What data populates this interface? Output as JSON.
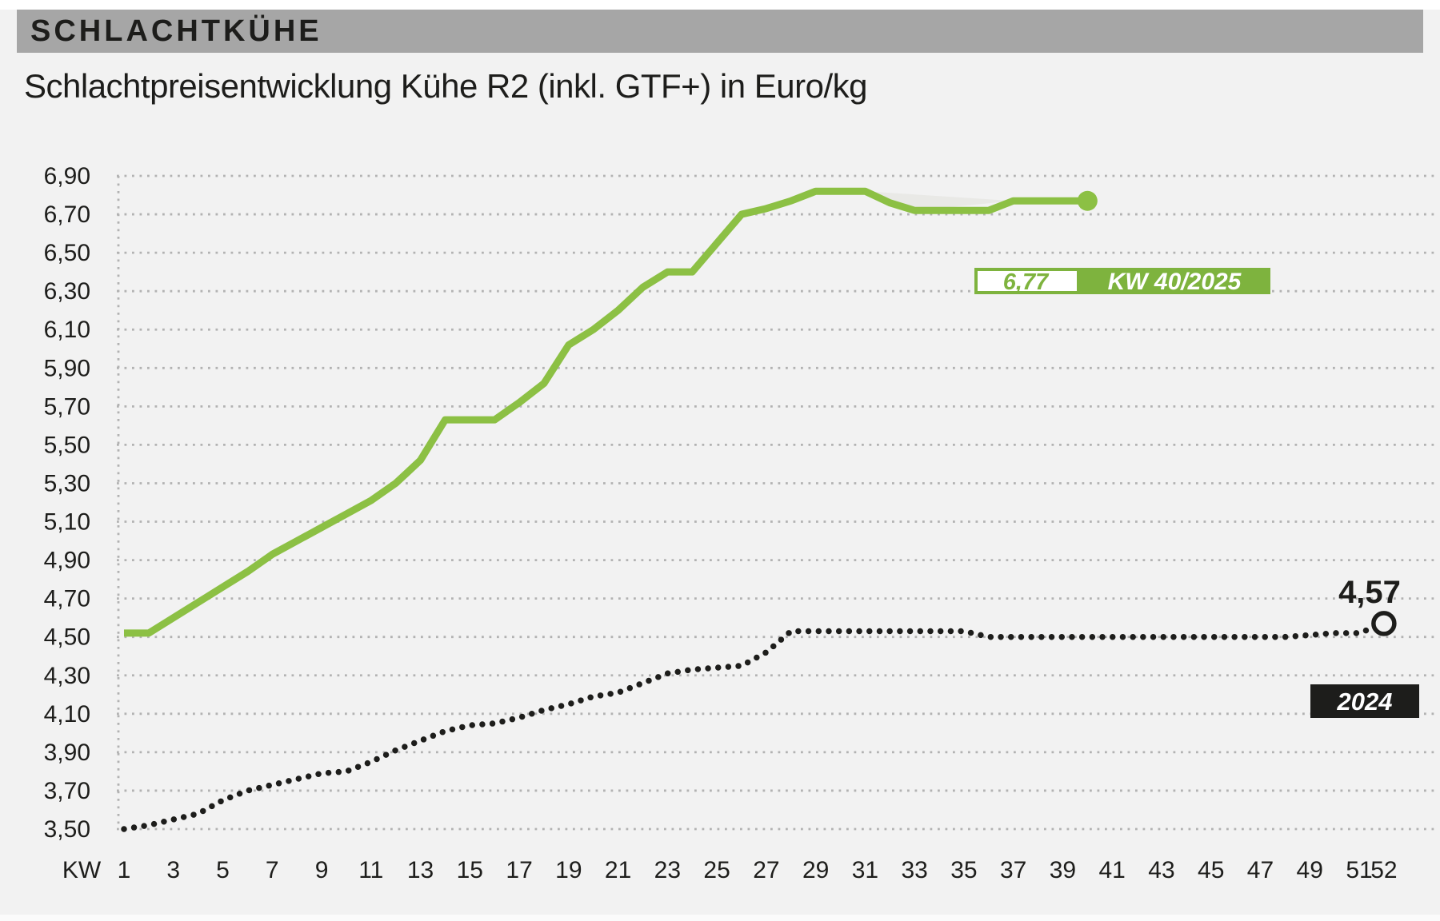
{
  "header": {
    "category_label": "SCHLACHTKÜHE",
    "title": "Schlachtpreisentwicklung Kühe R2 (inkl. GTF+) in Euro/kg"
  },
  "chart_data": {
    "type": "line",
    "title": "Schlachtpreisentwicklung Kühe R2 (inkl. GTF+) in Euro/kg",
    "unit": "Euro/kg",
    "x_axis": {
      "label": "KW",
      "tick_labels": [
        1,
        3,
        5,
        7,
        9,
        11,
        13,
        15,
        17,
        19,
        21,
        23,
        25,
        27,
        29,
        31,
        33,
        35,
        37,
        39,
        41,
        43,
        45,
        47,
        49,
        51,
        52
      ],
      "range": [
        1,
        52
      ]
    },
    "y_axis": {
      "tick_labels": [
        "6,90",
        "6,70",
        "6,50",
        "6,30",
        "6,10",
        "5,90",
        "5,70",
        "5,50",
        "5,30",
        "5,10",
        "4,90",
        "4,70",
        "4,50",
        "4,30",
        "4,10",
        "3,90",
        "3,70",
        "3,50"
      ],
      "tick_values": [
        6.9,
        6.7,
        6.5,
        6.3,
        6.1,
        5.9,
        5.7,
        5.5,
        5.3,
        5.1,
        4.9,
        4.7,
        4.5,
        4.3,
        4.1,
        3.9,
        3.7,
        3.5
      ],
      "range": [
        3.5,
        6.9
      ],
      "grid": "dotted"
    },
    "legend_position": "inline-badges",
    "series": [
      {
        "name": "KW 40/2025",
        "short_name": "2025",
        "style": "solid",
        "color": "#8cc044",
        "start_week": 1,
        "values": [
          4.52,
          4.52,
          4.6,
          4.68,
          4.76,
          4.84,
          4.93,
          5.0,
          5.07,
          5.14,
          5.21,
          5.3,
          5.42,
          5.63,
          5.63,
          5.63,
          5.72,
          5.82,
          6.02,
          6.1,
          6.2,
          6.32,
          6.4,
          6.4,
          6.55,
          6.7,
          6.73,
          6.77,
          6.82,
          6.82,
          6.82,
          6.76,
          6.72,
          6.72,
          6.72,
          6.72,
          6.77,
          6.77,
          6.77,
          6.77
        ],
        "end_value_label": "6,77",
        "end_marker": "filled-dot"
      },
      {
        "name": "2024",
        "short_name": "2024",
        "style": "dotted",
        "color": "#1d1d1b",
        "start_week": 1,
        "values": [
          3.5,
          3.52,
          3.55,
          3.58,
          3.65,
          3.7,
          3.73,
          3.76,
          3.79,
          3.8,
          3.85,
          3.91,
          3.96,
          4.01,
          4.04,
          4.05,
          4.08,
          4.12,
          4.15,
          4.19,
          4.21,
          4.26,
          4.31,
          4.33,
          4.34,
          4.35,
          4.42,
          4.53,
          4.53,
          4.53,
          4.53,
          4.53,
          4.53,
          4.53,
          4.53,
          4.5,
          4.5,
          4.5,
          4.5,
          4.5,
          4.5,
          4.5,
          4.5,
          4.5,
          4.5,
          4.5,
          4.5,
          4.5,
          4.51,
          4.52,
          4.52,
          4.57
        ],
        "end_value_label": "4,57",
        "end_marker": "open-circle"
      }
    ],
    "annotations": {
      "legend_2025": {
        "value_label": "6,77",
        "week_label": "KW 40/2025"
      },
      "end_2024": {
        "value_label": "4,57",
        "series_label": "2024"
      }
    }
  },
  "colors": {
    "background": "#f2f2f2",
    "band": "#a6a6a6",
    "text": "#1d1d1b",
    "grid": "#b2b2b2",
    "green_line": "#8cc044",
    "green_badge": "#7eb33e",
    "black_line": "#1d1d1b",
    "badge_text": "#ffffff"
  }
}
